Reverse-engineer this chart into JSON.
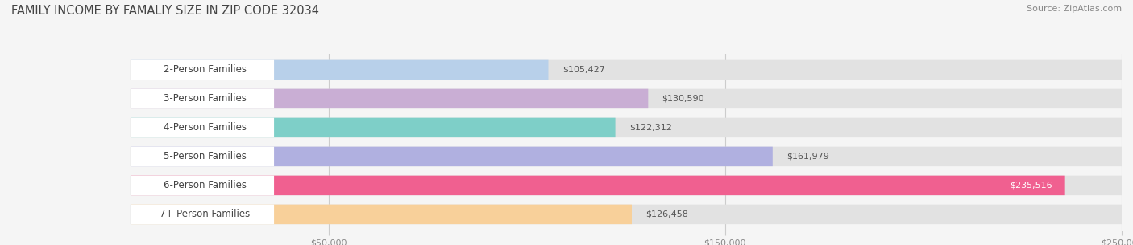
{
  "title": "FAMILY INCOME BY FAMALIY SIZE IN ZIP CODE 32034",
  "source": "Source: ZipAtlas.com",
  "categories": [
    "2-Person Families",
    "3-Person Families",
    "4-Person Families",
    "5-Person Families",
    "6-Person Families",
    "7+ Person Families"
  ],
  "values": [
    105427,
    130590,
    122312,
    161979,
    235516,
    126458
  ],
  "bar_colors": [
    "#b8d0ea",
    "#c9aed4",
    "#7ecfc8",
    "#b0b0e0",
    "#f06090",
    "#f8d09a"
  ],
  "value_labels": [
    "$105,427",
    "$130,590",
    "$122,312",
    "$161,979",
    "$235,516",
    "$126,458"
  ],
  "data_min": 0,
  "data_max": 250000,
  "xticks": [
    50000,
    150000,
    250000
  ],
  "xtick_labels": [
    "$50,000",
    "$150,000",
    "$250,000"
  ],
  "bg_color": "#f5f5f5",
  "bar_bg_color": "#e2e2e2",
  "label_pill_color": "#ffffff",
  "title_fontsize": 10.5,
  "source_fontsize": 8,
  "label_fontsize": 8.5,
  "value_fontsize": 8,
  "tick_fontsize": 8
}
